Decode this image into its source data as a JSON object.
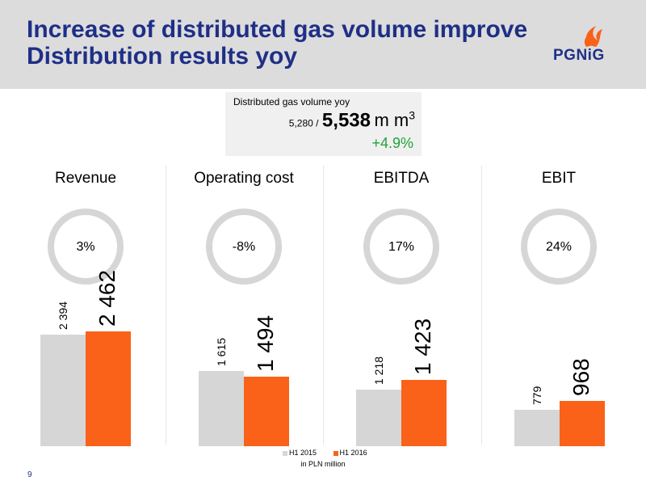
{
  "header": {
    "title_line1": "Increase of distributed gas volume improve",
    "title_line2": "Distribution results yoy",
    "logo_text": "PGNiG"
  },
  "kpi": {
    "label": "Distributed gas volume yoy",
    "previous": "5,280 /",
    "current": "5,538",
    "unit": "m m",
    "unit_sup": "3",
    "change": "+4.9%",
    "change_color": "#23a23a"
  },
  "chart_data": {
    "type": "bar",
    "unit_note": "in PLN million",
    "legend": [
      "H1 2015",
      "H1 2016"
    ],
    "colors": {
      "H1 2015": "#d6d6d6",
      "H1 2016": "#fa6119"
    },
    "panels": [
      {
        "title": "Revenue",
        "change": "3%",
        "values": [
          2394,
          2462
        ],
        "labels": [
          "2 394",
          "2 462"
        ]
      },
      {
        "title": "Operating cost",
        "change": "-8%",
        "values": [
          1615,
          1494
        ],
        "labels": [
          "1 615",
          "1 494"
        ]
      },
      {
        "title": "EBITDA",
        "change": "17%",
        "values": [
          1218,
          1423
        ],
        "labels": [
          "1 218",
          "1 423"
        ]
      },
      {
        "title": "EBIT",
        "change": "24%",
        "values": [
          779,
          968
        ],
        "labels": [
          "779",
          "968"
        ]
      }
    ]
  },
  "footer": {
    "page_number": "9"
  }
}
